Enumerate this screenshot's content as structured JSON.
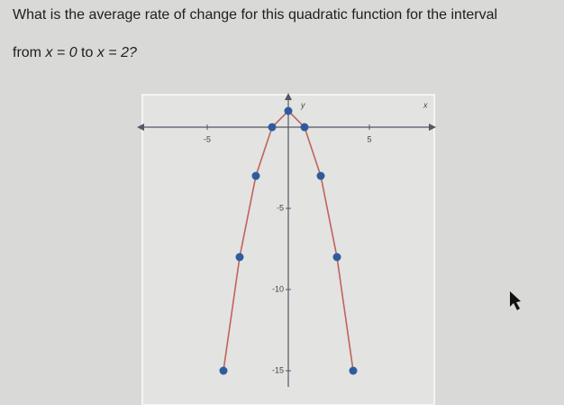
{
  "question": {
    "line1": "What is the average rate of change for this quadratic function for the interval",
    "from": "from",
    "start": "x = 0",
    "to": "to",
    "end": "x = 2?"
  },
  "chart_data": {
    "type": "line",
    "x_label": "x",
    "y_label": "y",
    "x": [
      -4,
      -3,
      -2,
      -1,
      0,
      1,
      2,
      3,
      4
    ],
    "values": [
      -15,
      -8,
      -3,
      0,
      1,
      0,
      -3,
      -8,
      -15
    ],
    "line_color": "#c0635c",
    "marker_color": "#2d5c9e",
    "xlim": [
      -9,
      9
    ],
    "ylim": [
      -16,
      2
    ],
    "xticks": [
      -5,
      5
    ],
    "yticks": [
      -5,
      -10,
      -15
    ]
  }
}
